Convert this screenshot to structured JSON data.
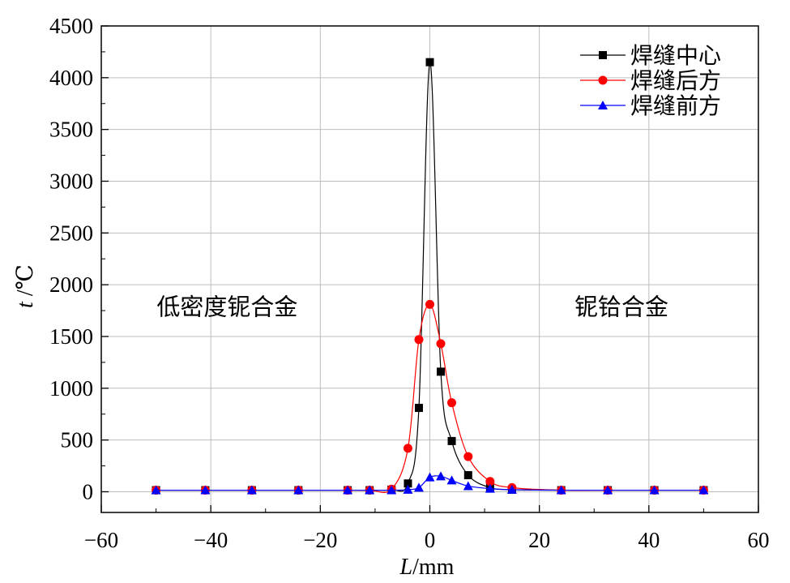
{
  "chart_data": {
    "type": "line",
    "xlabel_var": "L",
    "xlabel_unit": "/mm",
    "ylabel_var": "t",
    "ylabel_unit": " /℃",
    "xlim": [
      -60,
      60
    ],
    "ylim": [
      -200,
      4500
    ],
    "xticks": [
      -60,
      -40,
      -20,
      0,
      20,
      40,
      60
    ],
    "yticks": [
      0,
      500,
      1000,
      1500,
      2000,
      2500,
      3000,
      3500,
      4000,
      4500
    ],
    "grid": true,
    "legend_position": "top-right",
    "annotations": [
      {
        "text": "低密度铌合金",
        "x": -37,
        "y": 1800
      },
      {
        "text": "铌铪合金",
        "x": 35,
        "y": 1800
      }
    ],
    "series": [
      {
        "name": "焊缝中心",
        "color": "#000000",
        "marker": "square",
        "points": [
          [
            -50,
            15
          ],
          [
            -41,
            15
          ],
          [
            -32.5,
            15
          ],
          [
            -24,
            15
          ],
          [
            -15,
            15
          ],
          [
            -11,
            15
          ],
          [
            -7,
            20
          ],
          [
            -4,
            80
          ],
          [
            -2,
            810
          ],
          [
            0,
            4150
          ],
          [
            2,
            1160
          ],
          [
            4,
            490
          ],
          [
            7,
            160
          ],
          [
            11,
            40
          ],
          [
            15,
            20
          ],
          [
            24,
            15
          ],
          [
            32.5,
            15
          ],
          [
            41,
            15
          ],
          [
            50,
            15
          ]
        ]
      },
      {
        "name": "焊缝后方",
        "color": "#ff0000",
        "marker": "circle",
        "points": [
          [
            -50,
            15
          ],
          [
            -41,
            15
          ],
          [
            -32.5,
            15
          ],
          [
            -24,
            15
          ],
          [
            -15,
            15
          ],
          [
            -11,
            15
          ],
          [
            -7,
            25
          ],
          [
            -4,
            420
          ],
          [
            -2,
            1470
          ],
          [
            0,
            1810
          ],
          [
            2,
            1430
          ],
          [
            4,
            860
          ],
          [
            7,
            340
          ],
          [
            11,
            100
          ],
          [
            15,
            40
          ],
          [
            24,
            15
          ],
          [
            32.5,
            15
          ],
          [
            41,
            15
          ],
          [
            50,
            15
          ]
        ]
      },
      {
        "name": "焊缝前方",
        "color": "#0000ff",
        "marker": "triangle",
        "points": [
          [
            -50,
            15
          ],
          [
            -41,
            15
          ],
          [
            -32.5,
            15
          ],
          [
            -24,
            15
          ],
          [
            -15,
            15
          ],
          [
            -11,
            15
          ],
          [
            -7,
            15
          ],
          [
            -4,
            20
          ],
          [
            -2,
            40
          ],
          [
            0,
            140
          ],
          [
            2,
            150
          ],
          [
            4,
            110
          ],
          [
            7,
            55
          ],
          [
            11,
            30
          ],
          [
            15,
            20
          ],
          [
            24,
            15
          ],
          [
            32.5,
            15
          ],
          [
            41,
            15
          ],
          [
            50,
            15
          ]
        ]
      }
    ]
  }
}
